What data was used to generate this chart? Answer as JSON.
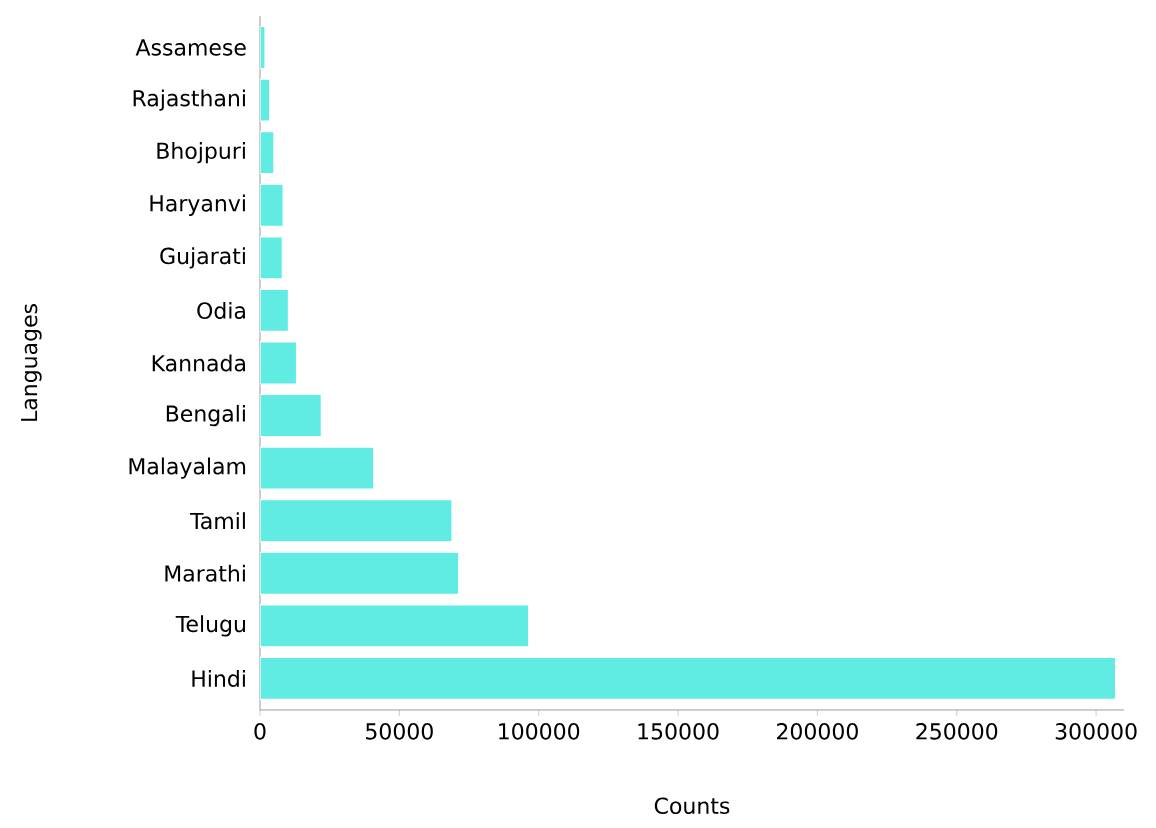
{
  "chart_data": {
    "type": "bar",
    "orientation": "horizontal",
    "xlabel": "Counts",
    "ylabel": "Languages",
    "categories": [
      "Assamese",
      "Rajasthani",
      "Bhojpuri",
      "Haryanvi",
      "Gujarati",
      "Odia",
      "Kannada",
      "Bengali",
      "Malayalam",
      "Tamil",
      "Marathi",
      "Telugu",
      "Hindi"
    ],
    "values": [
      1800,
      3500,
      5000,
      8300,
      8000,
      10200,
      13100,
      22000,
      40800,
      68900,
      71300,
      96400,
      307000
    ],
    "color": "#60ebe3",
    "xlim": [
      0,
      310000
    ],
    "xticks": [
      0,
      50000,
      100000,
      150000,
      200000,
      250000,
      300000
    ]
  }
}
